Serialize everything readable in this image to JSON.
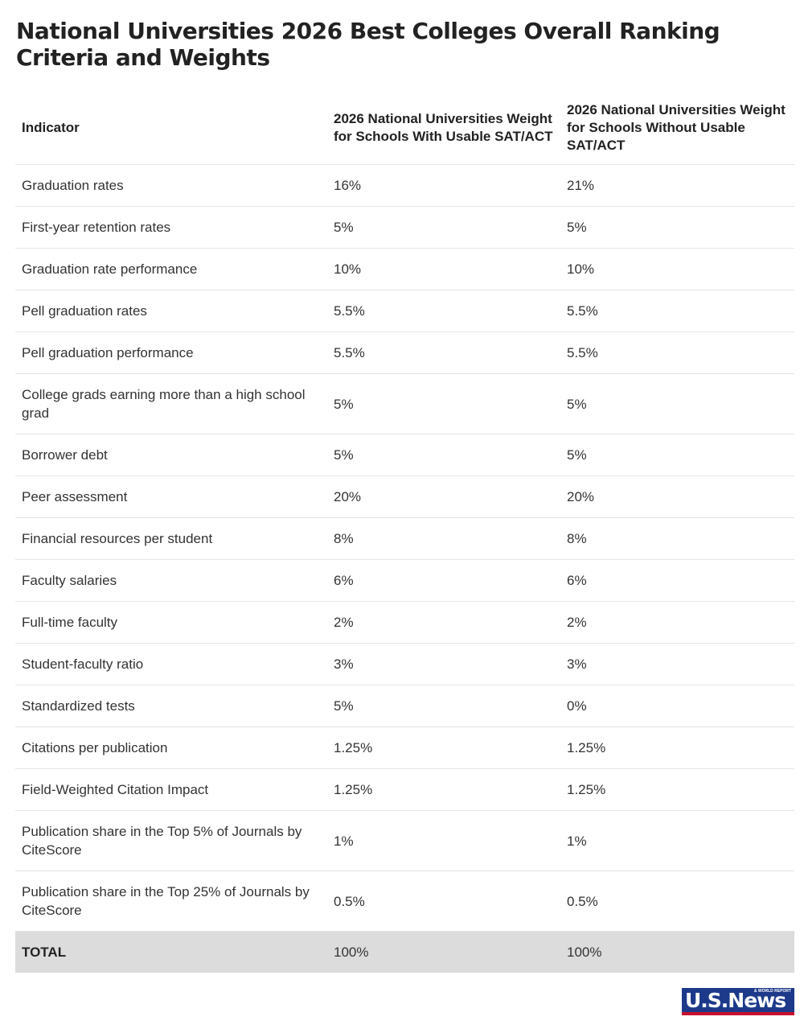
{
  "header": {
    "title": "National Universities 2026 Best Colleges Overall Ranking Criteria and Weights"
  },
  "table": {
    "columns": [
      "Indicator",
      "2026 National Universities Weight for Schools With Usable SAT/ACT",
      "2026 National Universities Weight for Schools Without Usable SAT/ACT"
    ],
    "rows": [
      [
        "Graduation rates",
        "16%",
        "21%"
      ],
      [
        "First-year retention rates",
        "5%",
        "5%"
      ],
      [
        "Graduation rate performance",
        "10%",
        "10%"
      ],
      [
        "Pell graduation rates",
        "5.5%",
        "5.5%"
      ],
      [
        "Pell graduation performance",
        "5.5%",
        "5.5%"
      ],
      [
        "College grads earning more than a high school grad",
        "5%",
        "5%"
      ],
      [
        "Borrower debt",
        "5%",
        "5%"
      ],
      [
        "Peer assessment",
        "20%",
        "20%"
      ],
      [
        "Financial resources per student",
        "8%",
        "8%"
      ],
      [
        "Faculty salaries",
        "6%",
        "6%"
      ],
      [
        "Full-time faculty",
        "2%",
        "2%"
      ],
      [
        "Student-faculty ratio",
        "3%",
        "3%"
      ],
      [
        "Standardized tests",
        "5%",
        "0%"
      ],
      [
        "Citations per publication",
        "1.25%",
        "1.25%"
      ],
      [
        "Field-Weighted Citation Impact",
        "1.25%",
        "1.25%"
      ],
      [
        "Publication share in the Top 5% of Journals by CiteScore",
        "1%",
        "1%"
      ],
      [
        "Publication share in the Top 25% of Journals by CiteScore",
        "0.5%",
        "0.5%"
      ]
    ],
    "total": [
      "TOTAL",
      "100%",
      "100%"
    ]
  },
  "logo": {
    "name": "U.S.News",
    "tagline": "& WORLD REPORT"
  }
}
